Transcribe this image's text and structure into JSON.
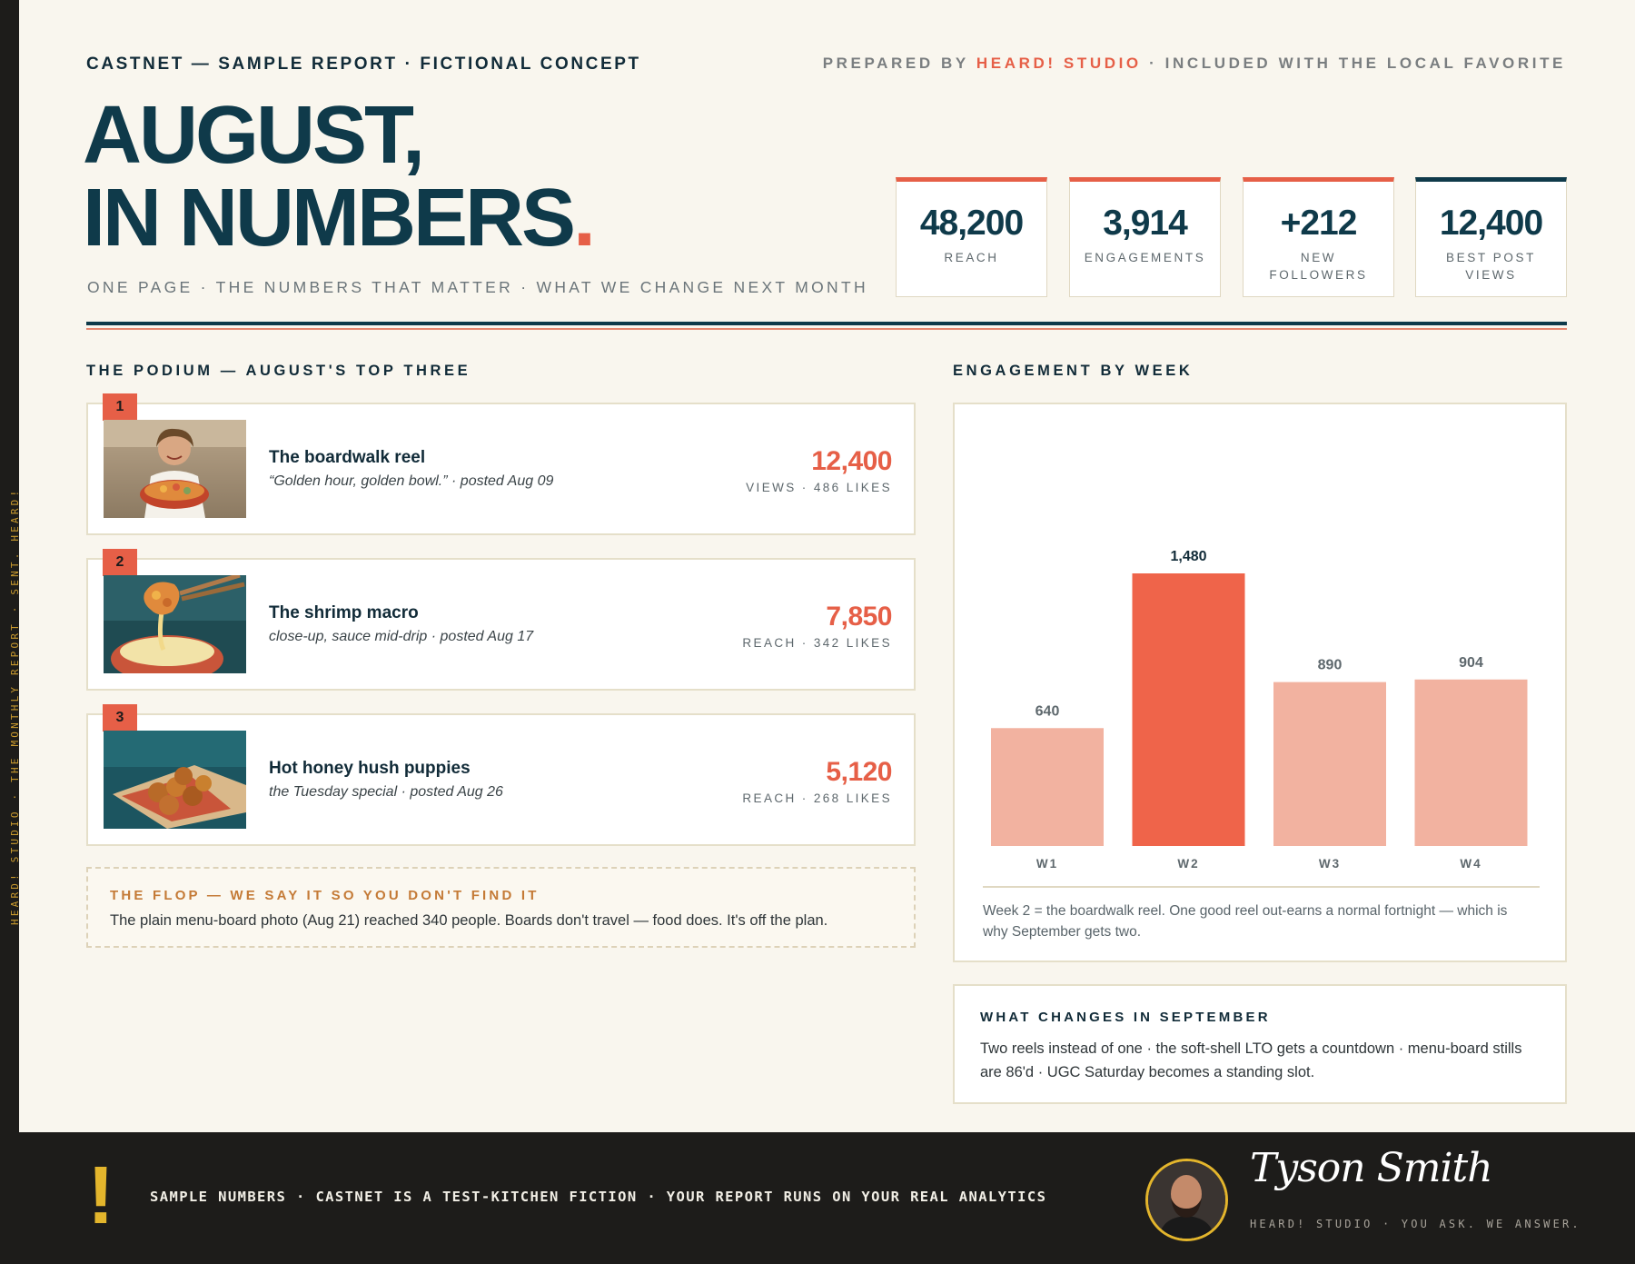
{
  "sidebar": {
    "text": "HEARD! STUDIO · THE MONTHLY REPORT · SENT. HEARD!"
  },
  "header": {
    "kicker": "CASTNET — SAMPLE REPORT · FICTIONAL CONCEPT",
    "prepared_prefix": "PREPARED BY ",
    "prepared_brand": "HEARD! STUDIO",
    "prepared_suffix": " · INCLUDED WITH THE LOCAL FAVORITE",
    "title_line1": "AUGUST,",
    "title_line2": "IN NUMBERS",
    "title_dot": ".",
    "tagline": "ONE PAGE · THE NUMBERS THAT MATTER · WHAT WE CHANGE NEXT MONTH"
  },
  "stats": [
    {
      "value": "48,200",
      "label": "REACH"
    },
    {
      "value": "3,914",
      "label": "ENGAGEMENTS"
    },
    {
      "value": "+212",
      "label": "NEW FOLLOWERS"
    },
    {
      "value": "12,400",
      "label": "BEST POST VIEWS"
    }
  ],
  "podium": {
    "title": "THE PODIUM — AUGUST'S TOP THREE",
    "items": [
      {
        "rank": "1",
        "title": "The boardwalk reel",
        "subtitle": "“Golden hour, golden bowl.” · posted Aug 09",
        "value": "12,400",
        "meta": "VIEWS · 486 LIKES"
      },
      {
        "rank": "2",
        "title": "The shrimp macro",
        "subtitle": "close-up, sauce mid-drip · posted Aug 17",
        "value": "7,850",
        "meta": "REACH · 342 LIKES"
      },
      {
        "rank": "3",
        "title": "Hot honey hush puppies",
        "subtitle": "the Tuesday special · posted Aug 26",
        "value": "5,120",
        "meta": "REACH · 268 LIKES"
      }
    ]
  },
  "flop": {
    "title": "THE FLOP — WE SAY IT SO YOU DON'T FIND IT",
    "body": "The plain menu-board photo (Aug 21) reached 340 people. Boards don't travel — food does. It's off the plan."
  },
  "engagement": {
    "title": "ENGAGEMENT BY WEEK",
    "note": "Week 2 = the boardwalk reel. One good reel out-earns a normal fortnight — which is why September gets two."
  },
  "chart_data": {
    "type": "bar",
    "categories": [
      "W1",
      "W2",
      "W3",
      "W4"
    ],
    "values": [
      640,
      1480,
      890,
      904
    ],
    "value_labels": [
      "640",
      "1,480",
      "890",
      "904"
    ],
    "highlight_index": 1,
    "colors": {
      "bar": "#f2b2a0",
      "highlight": "#ef644a",
      "label": "#5e686d",
      "highlight_label": "#112b38"
    },
    "ylim": [
      0,
      1480
    ],
    "grid": false
  },
  "changes": {
    "title": "WHAT CHANGES IN SEPTEMBER",
    "body": "Two reels instead of one · the soft-shell LTO gets a countdown · menu-board stills are 86'd · UGC Saturday becomes a standing slot."
  },
  "footer": {
    "mark": "!",
    "note": "SAMPLE NUMBERS · CASTNET IS A TEST-KITCHEN FICTION · YOUR REPORT RUNS ON YOUR REAL ANALYTICS",
    "signature": "Tyson Smith",
    "signature_sub": "HEARD! STUDIO · YOU ASK. WE ANSWER."
  },
  "colors": {
    "navy": "#0f3a4a",
    "coral": "#e65f47",
    "cream": "#f9f6ee",
    "gold": "#e3b52c",
    "dark": "#1d1c1a"
  },
  "icons": {
    "thumb_1": "smiling-woman-with-bowl-photo",
    "thumb_2": "shrimp-dip-photo",
    "thumb_3": "hush-puppies-photo",
    "avatar": "bearded-man-avatar"
  }
}
